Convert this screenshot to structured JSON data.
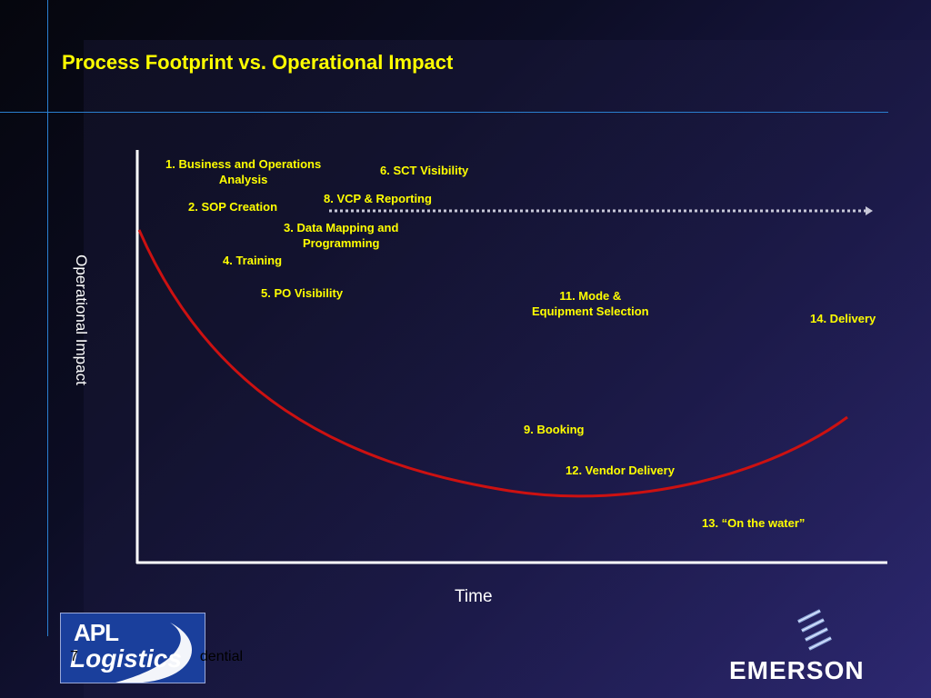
{
  "slide": {
    "title": "Process Footprint vs. Operational Impact",
    "footer_text": "7    Confidential",
    "slide_number": "7",
    "confidential": "dential"
  },
  "axes": {
    "y_label": "Operational Impact",
    "x_label": "Time"
  },
  "steps": [
    {
      "label": "1. Business and Operations Analysis",
      "line1": "1. Business and Operations",
      "line2": "Analysis"
    },
    {
      "label": "2. SOP Creation"
    },
    {
      "label": "3. Data Mapping and Programming",
      "line1": "3. Data Mapping and",
      "line2": "Programming"
    },
    {
      "label": "4. Training"
    },
    {
      "label": "5. PO Visibility"
    },
    {
      "label": "6. SCT Visibility"
    },
    {
      "label": "8. VCP & Reporting"
    },
    {
      "label": "9. Booking"
    },
    {
      "label": "11. Mode & Equipment Selection",
      "line1": "11. Mode &",
      "line2": "Equipment Selection"
    },
    {
      "label": "12. Vendor Delivery"
    },
    {
      "label": "13. “On the water”"
    },
    {
      "label": "14. Delivery"
    }
  ],
  "logos": {
    "apl_line1": "APL",
    "apl_line2": "Logistics",
    "emerson": "EMERSON"
  },
  "colors": {
    "title": "#ffff00",
    "label": "#ffff00",
    "curve": "#cc1111",
    "axis": "#ffffff",
    "dotted_arrow": "#c8c8d8",
    "rules": "#2a7fd0"
  }
}
